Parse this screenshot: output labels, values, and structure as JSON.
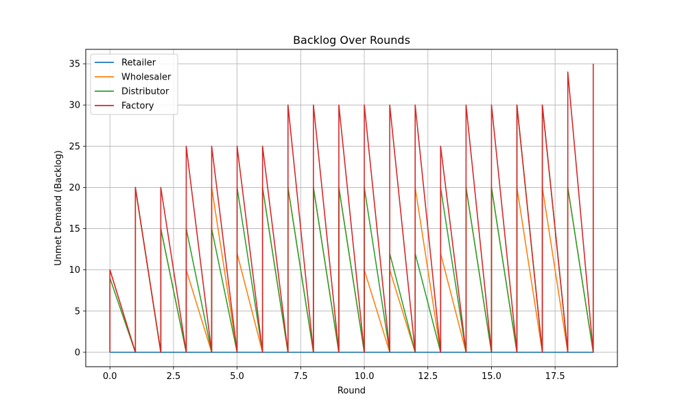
{
  "chart_data": {
    "type": "line",
    "title": "Backlog Over Rounds",
    "xlabel": "Round",
    "ylabel": "Unmet Demand (Backlog)",
    "xlim": [
      -0.95,
      19.95
    ],
    "ylim": [
      -1.75,
      36.75
    ],
    "x_ticks": [
      0.0,
      2.5,
      5.0,
      7.5,
      10.0,
      12.5,
      15.0,
      17.5
    ],
    "x_tick_labels": [
      "0.0",
      "2.5",
      "5.0",
      "7.5",
      "10.0",
      "12.5",
      "15.0",
      "17.5"
    ],
    "y_ticks": [
      0,
      5,
      10,
      15,
      20,
      25,
      30,
      35
    ],
    "y_tick_labels": [
      "0",
      "5",
      "10",
      "15",
      "20",
      "25",
      "30",
      "35"
    ],
    "grid": true,
    "legend_position": "top-left",
    "series": [
      {
        "name": "Retailer",
        "color": "#1f77b4",
        "x": [
          0,
          0,
          1,
          1,
          2,
          2,
          3,
          3,
          4,
          4,
          5,
          5,
          6,
          6,
          7,
          7,
          8,
          8,
          9,
          9,
          10,
          10,
          11,
          11,
          12,
          12,
          13,
          13,
          14,
          14,
          15,
          15,
          16,
          16,
          17,
          17,
          18,
          18,
          19,
          19
        ],
        "y": [
          0,
          0,
          0,
          0,
          0,
          0,
          0,
          0,
          0,
          0,
          0,
          0,
          0,
          0,
          0,
          0,
          0,
          0,
          0,
          0,
          0,
          0,
          0,
          0,
          0,
          0,
          0,
          0,
          0,
          0,
          0,
          0,
          0,
          0,
          0,
          0,
          0,
          0,
          0,
          0
        ]
      },
      {
        "name": "Wholesaler",
        "color": "#ff7f0e",
        "x": [
          0,
          0,
          1,
          1,
          2,
          2,
          3,
          3,
          4,
          4,
          5,
          5,
          6,
          6,
          7,
          7,
          8,
          8,
          9,
          9,
          10,
          10,
          11,
          11,
          12,
          12,
          13,
          13,
          14,
          14,
          15,
          15,
          16,
          16,
          17,
          17,
          18,
          18,
          19,
          19
        ],
        "y": [
          0,
          10,
          0,
          20,
          0,
          15,
          0,
          10,
          0,
          20,
          0,
          12,
          0,
          20,
          0,
          20,
          0,
          20,
          0,
          20,
          0,
          10,
          0,
          10,
          0,
          20,
          0,
          12,
          0,
          20,
          0,
          20,
          0,
          20,
          0,
          20,
          0,
          20,
          0,
          20
        ]
      },
      {
        "name": "Distributor",
        "color": "#2ca02c",
        "x": [
          0,
          0,
          1,
          1,
          2,
          2,
          3,
          3,
          4,
          4,
          5,
          5,
          6,
          6,
          7,
          7,
          8,
          8,
          9,
          9,
          10,
          10,
          11,
          11,
          12,
          12,
          13,
          13,
          14,
          14,
          15,
          15,
          16,
          16,
          17,
          17,
          18,
          18,
          19,
          19
        ],
        "y": [
          0,
          9,
          0,
          20,
          0,
          15,
          0,
          15,
          0,
          15,
          0,
          20,
          0,
          20,
          0,
          20,
          0,
          20,
          0,
          20,
          0,
          20,
          0,
          12,
          0,
          12,
          0,
          20,
          0,
          20,
          0,
          20,
          0,
          30,
          0,
          30,
          0,
          20,
          0,
          20
        ]
      },
      {
        "name": "Factory",
        "color": "#d62728",
        "x": [
          0,
          0,
          1,
          1,
          2,
          2,
          3,
          3,
          4,
          4,
          5,
          5,
          6,
          6,
          7,
          7,
          8,
          8,
          9,
          9,
          10,
          10,
          11,
          11,
          12,
          12,
          13,
          13,
          14,
          14,
          15,
          15,
          16,
          16,
          17,
          17,
          18,
          18,
          19,
          19
        ],
        "y": [
          0,
          10,
          0,
          20,
          0,
          20,
          0,
          25,
          0,
          25,
          0,
          25,
          0,
          25,
          0,
          30,
          0,
          30,
          0,
          30,
          0,
          30,
          0,
          30,
          0,
          30,
          0,
          25,
          0,
          30,
          0,
          30,
          0,
          30,
          0,
          30,
          0,
          34,
          0,
          35
        ]
      }
    ]
  }
}
